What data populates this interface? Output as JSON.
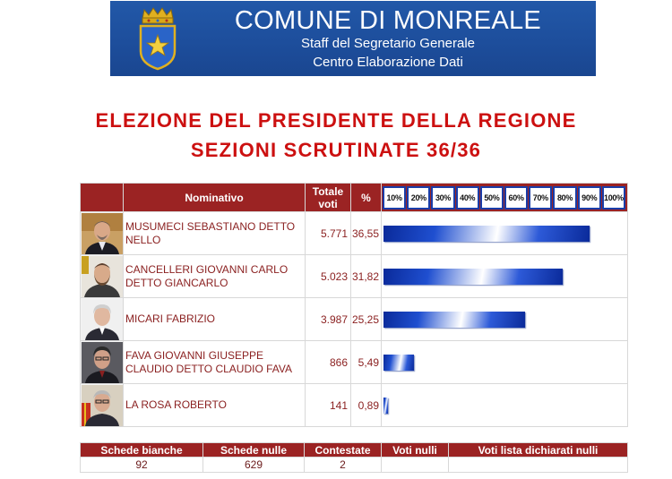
{
  "header": {
    "title": "COMUNE DI MONREALE",
    "subtitle1": "Staff del Segretario Generale",
    "subtitle2": "Centro Elaborazione Dati",
    "crest_icon": "crest-icon",
    "colors": {
      "banner": "#1d4e9c",
      "crest_gold": "#e0b020",
      "crest_blue": "#2a64c8"
    }
  },
  "titles": {
    "line1": "ELEZIONE DEL PRESIDENTE DELLA REGIONE",
    "line2": "SEZIONI SCRUTINATE 36/36",
    "color": "#cc1010"
  },
  "table": {
    "headers": {
      "nominativo": "Nominativo",
      "totale": "Totale voti",
      "percent": "%"
    },
    "scale": [
      "10%",
      "20%",
      "30%",
      "40%",
      "50%",
      "60%",
      "70%",
      "80%",
      "90%",
      "100%"
    ],
    "rows": [
      {
        "name": "MUSUMECI SEBASTIANO DETTO NELLO",
        "votes": "5.771",
        "percent": "36,55",
        "bar_fraction": 0.86
      },
      {
        "name": "CANCELLERI GIOVANNI CARLO DETTO GIANCARLO",
        "votes": "5.023",
        "percent": "31,82",
        "bar_fraction": 0.745
      },
      {
        "name": "MICARI FABRIZIO",
        "votes": "3.987",
        "percent": "25,25",
        "bar_fraction": 0.59
      },
      {
        "name": "FAVA GIOVANNI GIUSEPPE CLAUDIO DETTO CLAUDIO FAVA",
        "votes": "866",
        "percent": "5,49",
        "bar_fraction": 0.128
      },
      {
        "name": "LA ROSA ROBERTO",
        "votes": "141",
        "percent": "0,89",
        "bar_fraction": 0.02
      }
    ],
    "colors": {
      "header_bg": "#9b2323",
      "bar": "#1f4fd0",
      "text": "#8a1f1f"
    }
  },
  "summary": {
    "headers": [
      "Schede bianche",
      "Schede nulle",
      "Contestate",
      "Voti nulli",
      "Voti lista dichiarati nulli"
    ],
    "values": [
      "92",
      "629",
      "2",
      "",
      ""
    ]
  }
}
